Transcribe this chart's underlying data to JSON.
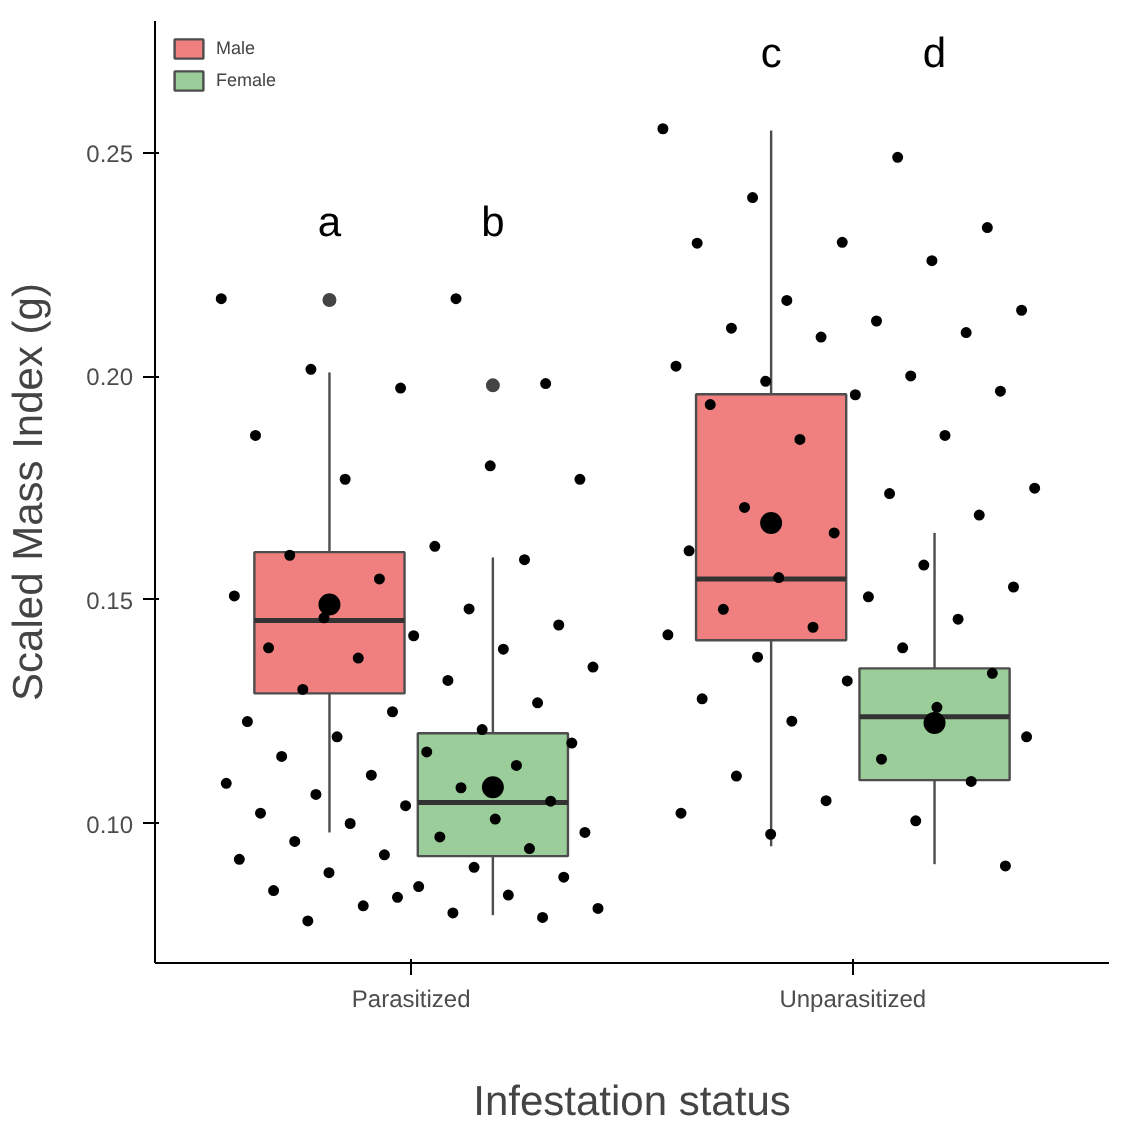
{
  "chart_data": {
    "type": "box",
    "xlabel": "Infestation status",
    "ylabel": "Scaled Mass Index (g)",
    "categories": [
      "Parasitized",
      "Unparasitized"
    ],
    "ylim": [
      0.0688,
      0.2795
    ],
    "yticks": [
      {
        "value": 0.1,
        "label": "0.10"
      },
      {
        "value": 0.15,
        "label": "0.15"
      },
      {
        "value": 0.2,
        "label": "0.20"
      },
      {
        "value": 0.25,
        "label": "0.25"
      }
    ],
    "grid": false,
    "legend": "top left",
    "series": [
      {
        "name": "Male",
        "color": "#f08080",
        "boxes": [
          {
            "low": 0.098,
            "q1": 0.1291,
            "median": 0.1454,
            "q3": 0.1607,
            "high": 0.2009,
            "mean": 0.149,
            "outliers": [
              0.2171
            ]
          },
          {
            "low": 0.0949,
            "q1": 0.141,
            "median": 0.1547,
            "q3": 0.196,
            "high": 0.255,
            "mean": 0.1672
          }
        ]
      },
      {
        "name": "Female",
        "color": "#9acd99",
        "boxes": [
          {
            "low": 0.0795,
            "q1": 0.0927,
            "median": 0.1047,
            "q3": 0.1202,
            "high": 0.1595,
            "mean": 0.1081,
            "outliers": [
              0.198
            ]
          },
          {
            "low": 0.0909,
            "q1": 0.1097,
            "median": 0.1239,
            "q3": 0.1347,
            "high": 0.165,
            "mean": 0.1225
          }
        ]
      },
      {
        "type": "scatter",
        "color": "#000000",
        "x": [
          "Parasitized",
          "Parasitized",
          "Parasitized",
          "Parasitized",
          "Parasitized",
          "Parasitized",
          "Parasitized",
          "Parasitized",
          "Parasitized",
          "Parasitized",
          "Parasitized",
          "Parasitized",
          "Parasitized",
          "Parasitized",
          "Parasitized",
          "Parasitized",
          "Parasitized",
          "Parasitized",
          "Parasitized",
          "Parasitized",
          "Parasitized",
          "Parasitized",
          "Parasitized",
          "Parasitized",
          "Parasitized",
          "Parasitized",
          "Parasitized",
          "Parasitized",
          "Parasitized",
          "Parasitized",
          "Parasitized",
          "Parasitized",
          "Parasitized",
          "Parasitized",
          "Parasitized",
          "Parasitized",
          "Parasitized",
          "Parasitized",
          "Parasitized",
          "Parasitized",
          "Parasitized",
          "Parasitized",
          "Parasitized",
          "Parasitized",
          "Parasitized",
          "Parasitized",
          "Parasitized",
          "Parasitized",
          "Parasitized",
          "Parasitized",
          "Parasitized",
          "Parasitized",
          "Parasitized",
          "Parasitized",
          "Parasitized",
          "Parasitized",
          "Parasitized",
          "Parasitized",
          "Parasitized",
          "Parasitized"
        ],
        "values": [
          0.2174,
          0.2174,
          0.2016,
          0.1984,
          0.1974,
          0.1868,
          0.18,
          0.177,
          0.177,
          0.162,
          0.16,
          0.159,
          0.1547,
          0.1509,
          0.148,
          0.146,
          0.1444,
          0.142,
          0.1393,
          0.139,
          0.137,
          0.135,
          0.132,
          0.13,
          0.127,
          0.125,
          0.1228,
          0.121,
          0.1194,
          0.118,
          0.116,
          0.115,
          0.113,
          0.1108,
          0.109,
          0.108,
          0.1065,
          0.105,
          0.104,
          0.1023,
          0.101,
          0.1,
          0.098,
          0.097,
          0.096,
          0.0944,
          0.093,
          0.092,
          0.0902,
          0.089,
          0.088,
          0.0859,
          0.085,
          0.084,
          0.0816,
          0.081,
          0.08,
          0.0782,
          0.079,
          0.0835
        ]
      },
      {
        "type": "scatter",
        "color": "#000000",
        "x": [
          "Unparasitized",
          "Unparasitized",
          "Unparasitized",
          "Unparasitized",
          "Unparasitized",
          "Unparasitized",
          "Unparasitized",
          "Unparasitized",
          "Unparasitized",
          "Unparasitized",
          "Unparasitized",
          "Unparasitized",
          "Unparasitized",
          "Unparasitized",
          "Unparasitized",
          "Unparasitized",
          "Unparasitized",
          "Unparasitized",
          "Unparasitized",
          "Unparasitized",
          "Unparasitized",
          "Unparasitized",
          "Unparasitized",
          "Unparasitized",
          "Unparasitized",
          "Unparasitized",
          "Unparasitized",
          "Unparasitized",
          "Unparasitized",
          "Unparasitized",
          "Unparasitized",
          "Unparasitized",
          "Unparasitized",
          "Unparasitized",
          "Unparasitized",
          "Unparasitized",
          "Unparasitized",
          "Unparasitized",
          "Unparasitized",
          "Unparasitized",
          "Unparasitized",
          "Unparasitized",
          "Unparasitized",
          "Unparasitized",
          "Unparasitized",
          "Unparasitized",
          "Unparasitized",
          "Unparasitized",
          "Unparasitized",
          "Unparasitized",
          "Unparasitized"
        ],
        "values": [
          0.2554,
          0.249,
          0.24,
          0.2333,
          0.23,
          0.2298,
          0.2259,
          0.217,
          0.2148,
          0.2124,
          0.2108,
          0.2098,
          0.2088,
          0.2023,
          0.2001,
          0.1989,
          0.1967,
          0.1959,
          0.1937,
          0.1868,
          0.1859,
          0.175,
          0.1738,
          0.1707,
          0.169,
          0.165,
          0.161,
          0.1578,
          0.155,
          0.1529,
          0.1507,
          0.1479,
          0.1457,
          0.1439,
          0.1422,
          0.1393,
          0.1372,
          0.1336,
          0.1319,
          0.1279,
          0.126,
          0.1229,
          0.1194,
          0.1144,
          0.1106,
          0.1094,
          0.1051,
          0.1023,
          0.1006,
          0.0976,
          0.0905
        ]
      }
    ],
    "annotations": [
      "a",
      "b",
      "c",
      "d"
    ]
  }
}
